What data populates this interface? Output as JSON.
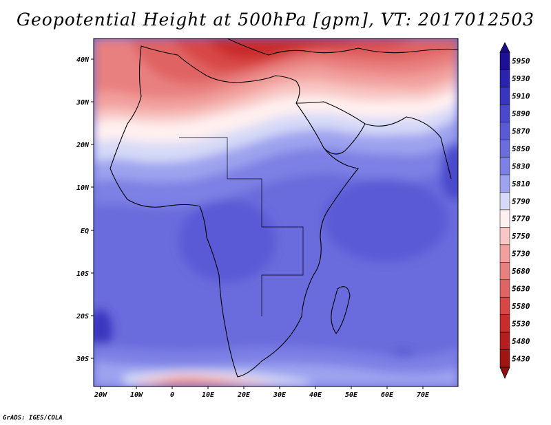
{
  "title": "Geopotential Height at 500hPa [gpm], VT: 2017012503",
  "credit": "GrADS: IGES/COLA",
  "map": {
    "lon_labels": [
      "20W",
      "10W",
      "0",
      "10E",
      "20E",
      "30E",
      "40E",
      "50E",
      "60E",
      "70E"
    ],
    "lat_labels": [
      "40N",
      "30N",
      "20N",
      "10N",
      "EQ",
      "10S",
      "20S",
      "30S"
    ]
  },
  "colorbar": {
    "levels": [
      "5950",
      "5930",
      "5910",
      "5890",
      "5870",
      "5850",
      "5830",
      "5810",
      "5790",
      "5770",
      "5750",
      "5730",
      "5680",
      "5630",
      "5580",
      "5530",
      "5480",
      "5430"
    ],
    "colors": [
      "#1e0f96",
      "#2b22ae",
      "#3a35c0",
      "#4a48cc",
      "#5a5ad6",
      "#6b6cdd",
      "#7d80e4",
      "#9ea3ef",
      "#d6daf8",
      "#fff0f0",
      "#f8c6c4",
      "#f1a09e",
      "#e88080",
      "#e06464",
      "#d84646",
      "#c92c2c",
      "#b51e1e",
      "#a01414"
    ]
  }
}
